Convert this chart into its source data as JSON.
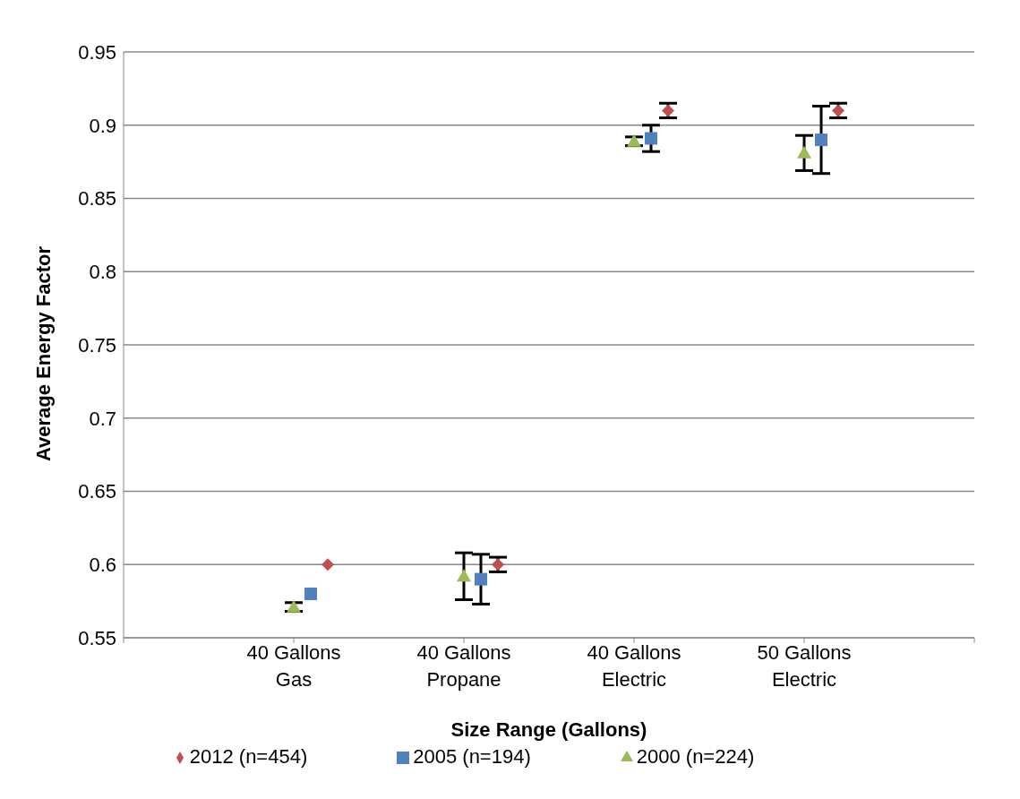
{
  "chart_data": {
    "type": "scatter",
    "xlabel": "Size Range (Gallons)",
    "ylabel": "Average Energy Factor",
    "categories": [
      "40 Gallons Gas",
      "40 Gallons Propane",
      "40 Gallons Electric",
      "50 Gallons Electric"
    ],
    "series": [
      {
        "name": "2012 (n=454)",
        "color": "#c0504d",
        "marker": "diamond",
        "values": [
          0.6,
          0.6,
          0.91,
          0.91
        ],
        "errors": [
          null,
          0.005,
          0.005,
          0.005
        ]
      },
      {
        "name": "2005 (n=194)",
        "color": "#4f81bd",
        "marker": "square",
        "values": [
          0.58,
          0.59,
          0.891,
          0.89
        ],
        "errors": [
          null,
          0.017,
          0.009,
          0.023
        ]
      },
      {
        "name": "2000 (n=224)",
        "color": "#9bbb59",
        "marker": "triangle",
        "values": [
          0.571,
          0.592,
          0.889,
          0.881
        ],
        "errors": [
          0.003,
          0.016,
          0.003,
          0.012
        ]
      }
    ],
    "ylim": [
      0.55,
      0.95
    ],
    "yticks": [
      0.55,
      0.6,
      0.65,
      0.7,
      0.75,
      0.8,
      0.85,
      0.9,
      0.95
    ],
    "grid": "y",
    "legend": "bottom"
  }
}
